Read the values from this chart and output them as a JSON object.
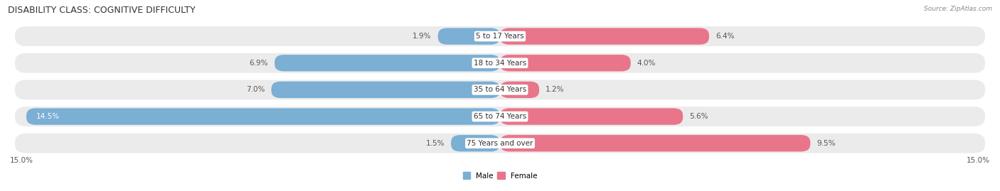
{
  "title": "DISABILITY CLASS: COGNITIVE DIFFICULTY",
  "source": "Source: ZipAtlas.com",
  "categories": [
    "5 to 17 Years",
    "18 to 34 Years",
    "35 to 64 Years",
    "65 to 74 Years",
    "75 Years and over"
  ],
  "male_values": [
    1.9,
    6.9,
    7.0,
    14.5,
    1.5
  ],
  "female_values": [
    6.4,
    4.0,
    1.2,
    5.6,
    9.5
  ],
  "max_val": 15.0,
  "male_color": "#7bafd4",
  "female_color": "#e8758a",
  "male_color_light": "#b8d4ea",
  "female_color_light": "#f2b0bc",
  "male_label": "Male",
  "female_label": "Female",
  "row_bg_color": "#ebebeb",
  "title_fontsize": 9,
  "label_fontsize": 7.5,
  "tick_fontsize": 7.5,
  "bar_height": 0.62,
  "axis_label_left": "15.0%",
  "axis_label_right": "15.0%"
}
